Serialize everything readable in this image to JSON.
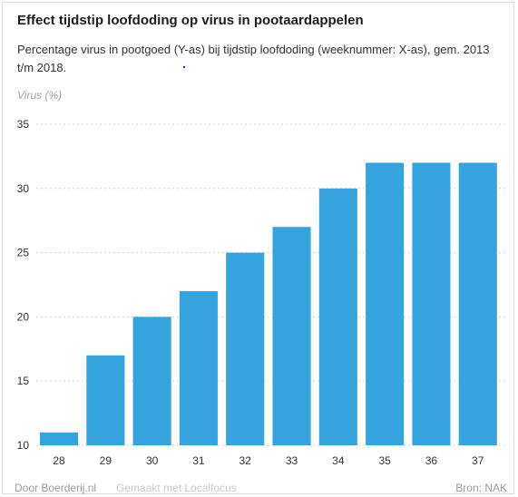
{
  "header": {
    "title": "Effect tijdstip loofdoding op virus in pootaardappelen",
    "subtitle": "Percentage virus in pootgoed (Y-as) bij tijdstip loofdoding (weeknummer: X-as), gem. 2013 t/m 2018."
  },
  "chart_data": {
    "type": "bar",
    "title": "Effect tijdstip loofdoding op virus in pootaardappelen",
    "subtitle": "Percentage virus in pootgoed (Y-as) bij tijdstip loofdoding (weeknummer: X-as), gem. 2013 t/m 2018.",
    "ylabel": "Virus (%)",
    "xlabel": "",
    "categories": [
      "28",
      "29",
      "30",
      "31",
      "32",
      "33",
      "34",
      "35",
      "36",
      "37"
    ],
    "values": [
      11,
      17,
      20,
      22,
      25,
      27,
      30,
      32,
      32,
      32
    ],
    "ylim": [
      10,
      35
    ],
    "yticks": [
      "10",
      "15",
      "20",
      "25",
      "30",
      "35"
    ],
    "grid": true,
    "colors": {
      "bar": "#35a3de",
      "grid": "#d0d0d0",
      "tick_text": "#333333"
    }
  },
  "footer": {
    "credit": "Door Boerderij.nl",
    "made_with": "Gemaakt met Localfocus",
    "source": "Bron:  NAK"
  }
}
